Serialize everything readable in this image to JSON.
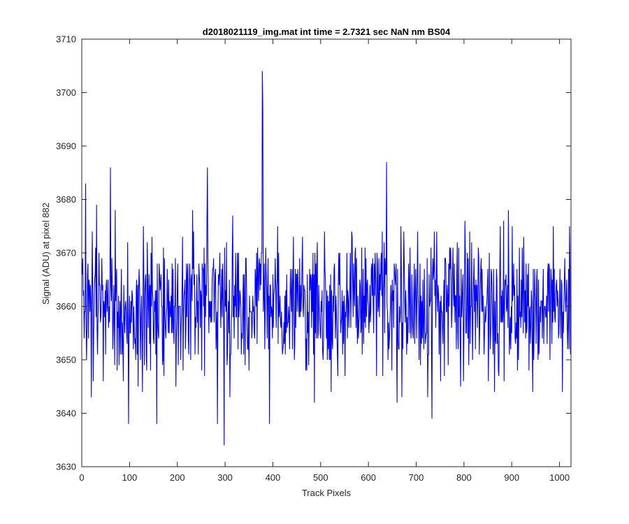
{
  "chart_data": {
    "type": "line",
    "title": "d2018021119_img.mat int time = 2.7321 sec  NaN nm BS04",
    "xlabel": "Track Pixels",
    "ylabel": "Signal (ADU) at pixel 882",
    "xlim": [
      0,
      1024
    ],
    "ylim": [
      3630,
      3710
    ],
    "xticks": [
      0,
      100,
      200,
      300,
      400,
      500,
      600,
      700,
      800,
      900,
      1000
    ],
    "yticks": [
      3630,
      3640,
      3650,
      3660,
      3670,
      3680,
      3690,
      3700,
      3710
    ],
    "xtick_labels": [
      "0",
      "100",
      "200",
      "300",
      "400",
      "500",
      "600",
      "700",
      "800",
      "900",
      "1000"
    ],
    "ytick_labels": [
      "3630",
      "3640",
      "3650",
      "3660",
      "3670",
      "3680",
      "3690",
      "3700",
      "3710"
    ],
    "grid": false,
    "series": [
      {
        "color": "#0000ff",
        "n_points": 1024,
        "mean": 3660.5,
        "std": 6.5,
        "min_clip": 3636,
        "max_clip": 3686,
        "features": [
          {
            "x": 8,
            "y": 3683
          },
          {
            "x": 20,
            "y": 3643
          },
          {
            "x": 60,
            "y": 3686
          },
          {
            "x": 98,
            "y": 3638
          },
          {
            "x": 157,
            "y": 3638
          },
          {
            "x": 263,
            "y": 3686
          },
          {
            "x": 284,
            "y": 3638
          },
          {
            "x": 298,
            "y": 3634
          },
          {
            "x": 378,
            "y": 3704
          },
          {
            "x": 379,
            "y": 3697
          },
          {
            "x": 393,
            "y": 3638
          },
          {
            "x": 638,
            "y": 3687
          },
          {
            "x": 733,
            "y": 3639
          },
          {
            "x": 1006,
            "y": 3644
          }
        ]
      }
    ]
  }
}
